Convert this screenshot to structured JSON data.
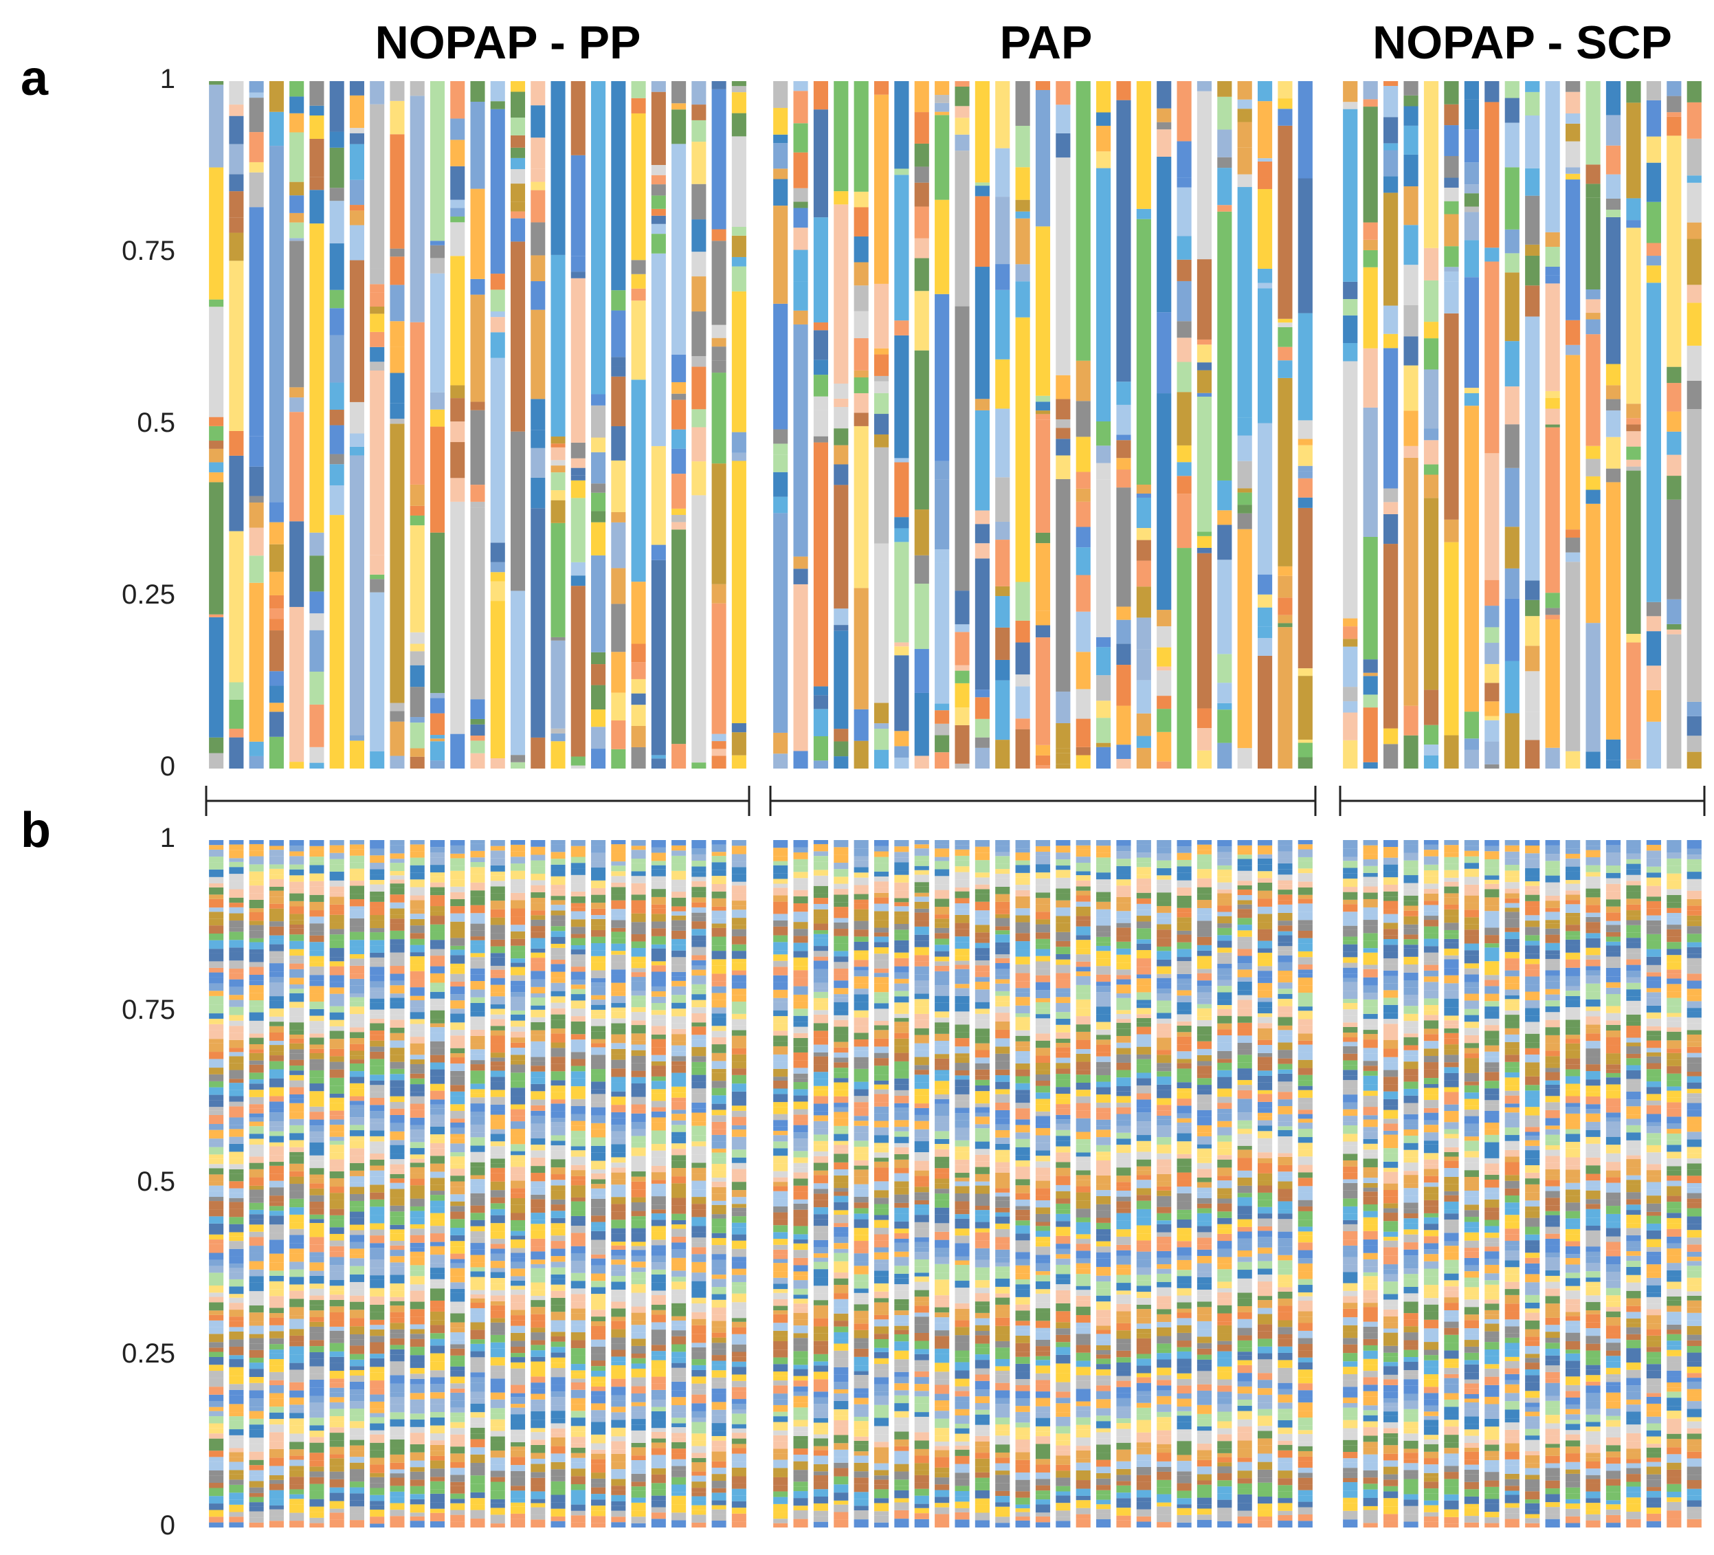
{
  "chart_data": [
    {
      "type": "bar",
      "stacked": true,
      "normalized": true,
      "panel_label": "a",
      "groups": [
        {
          "name": "NOPAP - PP",
          "n_samples": 27
        },
        {
          "name": "PAP",
          "n_samples": 27
        },
        {
          "name": "NOPAP - SCP",
          "n_samples": 18
        }
      ],
      "y_ticks": [
        "0",
        "0.25",
        "0.5",
        "0.75",
        "1"
      ],
      "ylim": [
        0,
        1
      ],
      "segment_profile": "few_dominant_taxa_per_sample",
      "segments_per_bar": 16,
      "seed": 7
    },
    {
      "type": "bar",
      "stacked": true,
      "normalized": true,
      "panel_label": "b",
      "groups": [
        {
          "name": "NOPAP - PP",
          "n_samples": 27
        },
        {
          "name": "PAP",
          "n_samples": 27
        },
        {
          "name": "NOPAP - SCP",
          "n_samples": 18
        }
      ],
      "y_ticks": [
        "0",
        "0.25",
        "0.5",
        "0.75",
        "1"
      ],
      "ylim": [
        0,
        1
      ],
      "segment_profile": "many_even_taxa",
      "segments_per_bar": 110,
      "seed": 23
    }
  ],
  "palette": [
    "#5b8fd6",
    "#f79d6b",
    "#bfbfbf",
    "#ffd23f",
    "#4f7ab1",
    "#5fb0e0",
    "#79c06b",
    "#c27a4a",
    "#8f8f8f",
    "#c59c3a",
    "#a9c9ea",
    "#f08a4b",
    "#e9a954",
    "#6a9a5a",
    "#f9c6a8",
    "#d9d9d9",
    "#ffe07a",
    "#3f86c2",
    "#b3dfa6",
    "#9bb6d9",
    "#ffb74d",
    "#7ea6d6"
  ]
}
